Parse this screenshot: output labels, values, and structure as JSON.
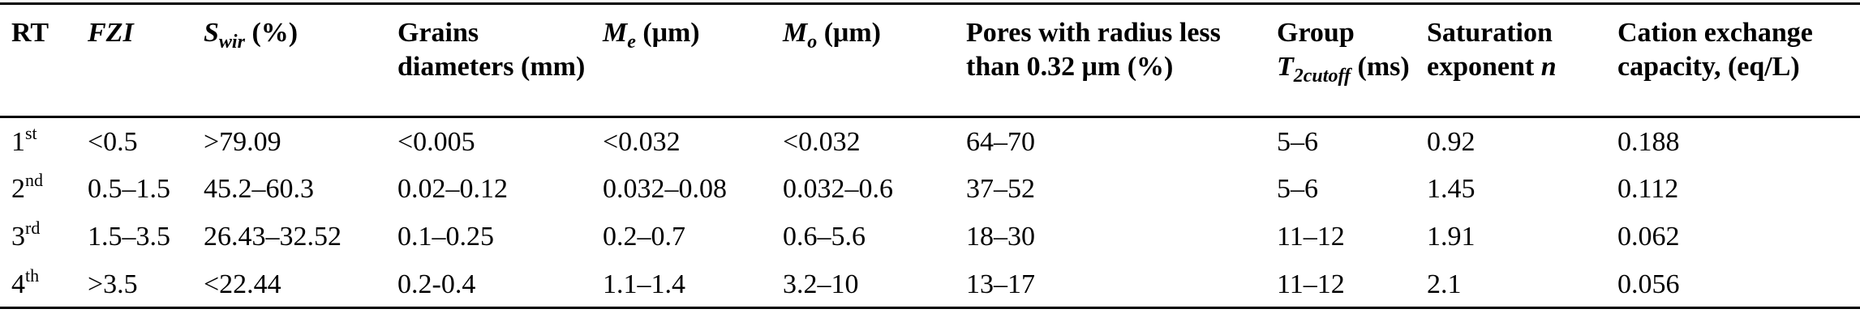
{
  "table": {
    "headers": {
      "rt": "RT",
      "fzi": "FZI",
      "swir_symbol": "S",
      "swir_sub": "wir",
      "swir_unit": " (%)",
      "grains": "Grains diameters (mm)",
      "me_symbol": "M",
      "me_sub": "e",
      "me_unit": " (μm)",
      "mo_symbol": "M",
      "mo_sub": "o",
      "mo_unit": " (μm)",
      "pores": "Pores with radius less than 0.32 μm (%)",
      "group_prefix": "Group ",
      "t2_symbol": "T",
      "t2_sub": "2cutoff",
      "group_unit": " (ms)",
      "saturation_prefix": "Saturation exponent ",
      "saturation_symbol": "n",
      "cation": "Cation exchange capacity, (eq/L)"
    },
    "rows": [
      {
        "rt_num": "1",
        "rt_suffix": "st",
        "fzi": "<0.5",
        "swir": ">79.09",
        "grains": "<0.005",
        "me": "<0.032",
        "mo": "<0.032",
        "pores": "64–70",
        "group": "5–6",
        "saturation": "0.92",
        "cation": "0.188"
      },
      {
        "rt_num": "2",
        "rt_suffix": "nd",
        "fzi": "0.5–1.5",
        "swir": "45.2–60.3",
        "grains": "0.02–0.12",
        "me": "0.032–0.08",
        "mo": "0.032–0.6",
        "pores": "37–52",
        "group": "5–6",
        "saturation": "1.45",
        "cation": "0.112"
      },
      {
        "rt_num": "3",
        "rt_suffix": "rd",
        "fzi": "1.5–3.5",
        "swir": "26.43–32.52",
        "grains": "0.1–0.25",
        "me": "0.2–0.7",
        "mo": "0.6–5.6",
        "pores": "18–30",
        "group": "11–12",
        "saturation": "1.91",
        "cation": "0.062"
      },
      {
        "rt_num": "4",
        "rt_suffix": "th",
        "fzi": ">3.5",
        "swir": "<22.44",
        "grains": "0.2-0.4",
        "me": "1.1–1.4",
        "mo": "3.2–10",
        "pores": "13–17",
        "group": "11–12",
        "saturation": "2.1",
        "cation": "0.056"
      }
    ]
  }
}
